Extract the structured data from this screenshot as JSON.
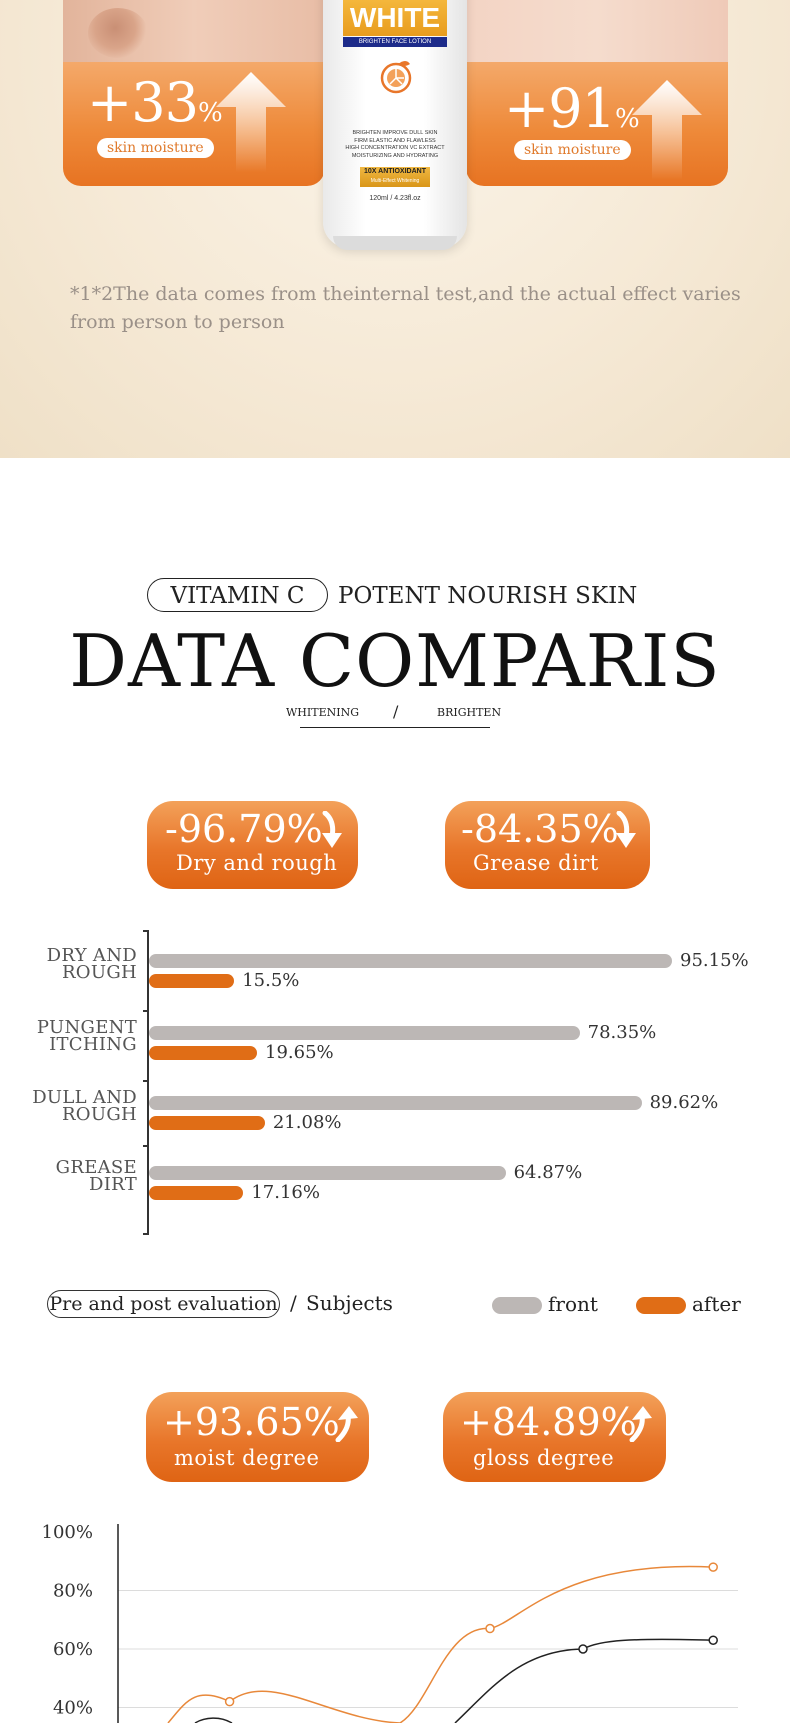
{
  "hero": {
    "left_stat": {
      "value": "+33",
      "unit": "%",
      "label": "skin moisture"
    },
    "right_stat": {
      "value": "+91",
      "unit": "%",
      "label": "skin moisture"
    },
    "bottle": {
      "brand": "WHITE",
      "subtitle": "BRIGHTEN FACE LOTION",
      "lines": [
        "BRIGHTEN IMPROVE DULL SKIN",
        "FIRM ELASTIC AND FLAWLESS",
        "HIGH CONCENTRATION VC EXTRACT",
        "MOISTURIZING AND HYDRATING"
      ],
      "badge": "10X ANTIOXIDANT",
      "badge_sub": "Multi-Effect Whitening",
      "volume": "120ml / 4.23fl.oz"
    },
    "disclaimer": "*1*2The data comes from theinternal test,and the actual effect varies from person to person"
  },
  "header": {
    "vitamin_pill": "VITAMIN C",
    "tagline": "POTENT NOURISH SKIN",
    "title": "DATA COMPARIS",
    "sub_left": "WHITENING",
    "sub_slash": "/",
    "sub_right": "BRIGHTEN"
  },
  "badges_top": [
    {
      "pct": "-96.79%",
      "caption": "Dry and rough",
      "direction": "down"
    },
    {
      "pct": "-84.35%",
      "caption": "Grease dirt",
      "direction": "down"
    }
  ],
  "badges_bottom": [
    {
      "pct": "+93.65%",
      "caption": "moist degree",
      "direction": "up"
    },
    {
      "pct": "+84.89%",
      "caption": "gloss degree",
      "direction": "up"
    }
  ],
  "chart_data": [
    {
      "type": "bar",
      "orientation": "horizontal",
      "categories": [
        "DRY AND\nROUGH",
        "PUNGENT\nITCHING",
        "DULL AND\nROUGH",
        "GREASE\nDIRT"
      ],
      "series": [
        {
          "name": "front",
          "values": [
            95.15,
            78.35,
            89.62,
            64.87
          ],
          "labels": [
            "95.15%",
            "78.35%",
            "89.62%",
            "64.87%"
          ],
          "color": "#bcb7b5"
        },
        {
          "name": "after",
          "values": [
            15.5,
            19.65,
            21.08,
            17.16
          ],
          "labels": [
            "15.5%",
            "19.65%",
            "21.08%",
            "17.16%"
          ],
          "color": "#e06d16"
        }
      ],
      "xlim": [
        0,
        100
      ],
      "legend": "bottom-right",
      "footer_pill": "Pre and post evaluation",
      "footer_slash": "/",
      "footer_text": "Subjects"
    },
    {
      "type": "line",
      "y_ticks": [
        "100%",
        "80%",
        "60%",
        "40%"
      ],
      "ylim": [
        30,
        100
      ],
      "grid": true,
      "series": [
        {
          "color": "#e8883a",
          "points": [
            [
              0.18,
              42
            ],
            [
              0.6,
              67
            ],
            [
              0.96,
              88
            ]
          ]
        },
        {
          "color": "#222222",
          "points": [
            [
              0.75,
              60
            ],
            [
              0.96,
              63
            ]
          ]
        }
      ]
    }
  ]
}
